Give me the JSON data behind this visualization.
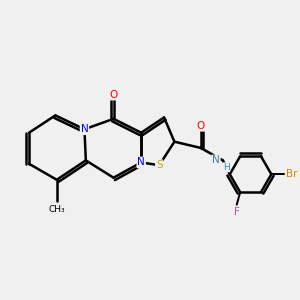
{
  "background_color": "#f0f0f0",
  "bond_color": "#000000",
  "atom_colors": {
    "N": "#0000ff",
    "O": "#ff0000",
    "S": "#ccaa00",
    "Br": "#cc8800",
    "F": "#cc44aa",
    "NH": "#3388aa",
    "C": "#000000"
  },
  "title": "",
  "figsize": [
    3.0,
    3.0
  ],
  "dpi": 100
}
